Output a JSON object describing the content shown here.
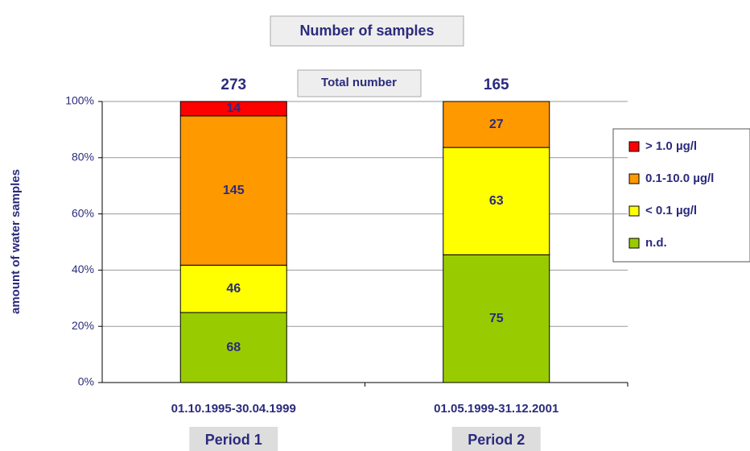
{
  "chart_data": {
    "type": "bar",
    "stacked": "percent",
    "title": "Number of samples",
    "annotation": "Total number",
    "y_label": "amount of water samples",
    "categories": [
      "01.10.1995-30.04.1999",
      "01.05.1999-31.12.2001"
    ],
    "period_labels": [
      "Period 1",
      "Period 2"
    ],
    "totals": [
      273,
      165
    ],
    "series": [
      {
        "name": "n.d.",
        "color": "#99cc00",
        "values": [
          68,
          75
        ]
      },
      {
        "name": "< 0.1 µg/l",
        "color": "#ffff00",
        "values": [
          46,
          63
        ]
      },
      {
        "name": "0.1-10.0 µg/l",
        "color": "#ff9900",
        "values": [
          145,
          27
        ]
      },
      {
        "name": "> 1.0 µg/l",
        "color": "#ff0000",
        "values": [
          14,
          null
        ]
      }
    ],
    "ylim": [
      0,
      100
    ],
    "yticks": [
      {
        "value": 0,
        "label": "0%"
      },
      {
        "value": 20,
        "label": "20%"
      },
      {
        "value": 40,
        "label": "40%"
      },
      {
        "value": 60,
        "label": "60%"
      },
      {
        "value": 80,
        "label": "80%"
      },
      {
        "value": 100,
        "label": "100%"
      }
    ],
    "grid": true
  }
}
